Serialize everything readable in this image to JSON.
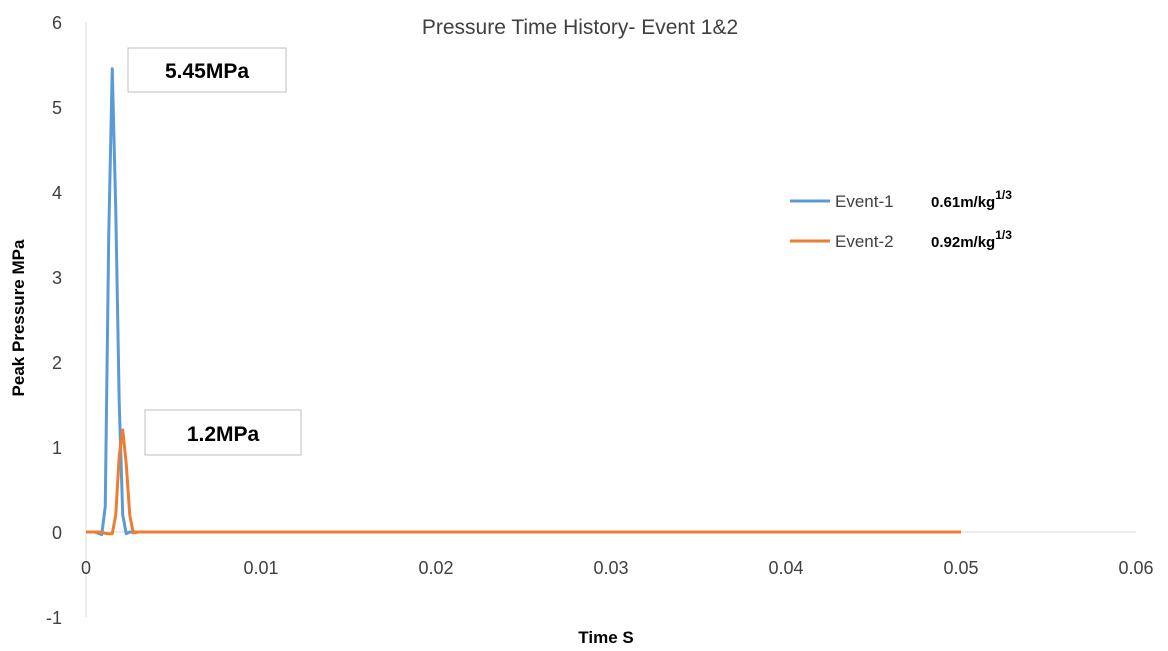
{
  "chart_data": {
    "type": "line",
    "title": "Pressure Time History- Event 1&2",
    "xlabel": "Time S",
    "ylabel": "Peak Pressure MPa",
    "xlim": [
      0,
      0.06
    ],
    "ylim": [
      -1,
      6
    ],
    "x_ticks": [
      "0",
      "0.01",
      "0.02",
      "0.03",
      "0.04",
      "0.05",
      "0.06"
    ],
    "y_ticks": [
      "-1",
      "0",
      "1",
      "2",
      "3",
      "4",
      "5",
      "6"
    ],
    "grid": false,
    "legend_position": "right",
    "series": [
      {
        "name": "Event-1",
        "descriptor_base": "0.61m/kg",
        "descriptor_exp": "1/3",
        "color": "#5b9bd5",
        "x": [
          0,
          0.0005,
          0.0009,
          0.0011,
          0.0013,
          0.0015,
          0.0017,
          0.0019,
          0.0021,
          0.0023,
          0.0025,
          0.003,
          0.05
        ],
        "y": [
          0,
          0,
          -0.03,
          0.3,
          3.5,
          5.45,
          3.8,
          1.5,
          0.2,
          -0.02,
          0,
          0,
          0
        ]
      },
      {
        "name": "Event-2",
        "descriptor_base": "0.92m/kg",
        "descriptor_exp": "1/3",
        "color": "#ed7d31",
        "x": [
          0,
          0.0008,
          0.0012,
          0.0015,
          0.0017,
          0.0019,
          0.0021,
          0.0023,
          0.0025,
          0.0027,
          0.003,
          0.05
        ],
        "y": [
          0,
          0,
          -0.02,
          -0.02,
          0.2,
          0.9,
          1.2,
          0.8,
          0.2,
          -0.01,
          0,
          0
        ]
      }
    ],
    "annotations": [
      {
        "text": "5.45MPa"
      },
      {
        "text": "1.2MPa"
      }
    ]
  }
}
